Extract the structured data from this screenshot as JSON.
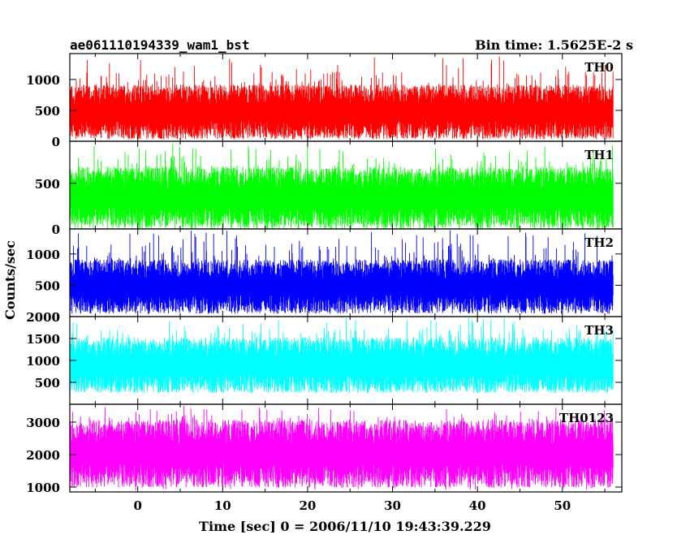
{
  "chart_data": {
    "type": "line",
    "title_left": "ae061110194339_wam1_bst",
    "title_right": "Bin time: 1.5625E-2 s",
    "xlabel": "Time [sec] 0 = 2006/11/10 19:43:39.229",
    "ylabel": "Counts/sec",
    "xlim": [
      -8,
      57
    ],
    "x_ticks": [
      0,
      10,
      20,
      30,
      40,
      50
    ],
    "x_range_data": [
      -8,
      56
    ],
    "grid": false,
    "panels": [
      {
        "name": "TH0",
        "color": "#ff0000",
        "ylim": [
          0,
          1420
        ],
        "yticks": [
          0,
          500,
          1000
        ],
        "base_low": 190,
        "base_high": 760,
        "peak_max": 1380,
        "trough_min": 40
      },
      {
        "name": "TH1",
        "color": "#00ff00",
        "ylim": [
          0,
          960
        ],
        "yticks": [
          0,
          500
        ],
        "base_low": 120,
        "base_high": 560,
        "peak_max": 930,
        "trough_min": 30
      },
      {
        "name": "TH2",
        "color": "#0000ff",
        "ylim": [
          0,
          1400
        ],
        "yticks": [
          0,
          500,
          1000
        ],
        "base_low": 200,
        "base_high": 760,
        "peak_max": 1380,
        "trough_min": 40
      },
      {
        "name": "TH3",
        "color": "#00ffff",
        "ylim": [
          0,
          2000
        ],
        "yticks": [
          500,
          1000,
          1500,
          2000
        ],
        "base_low": 480,
        "base_high": 1300,
        "peak_max": 1980,
        "trough_min": 260
      },
      {
        "name": "TH0123",
        "color": "#ff00ff",
        "ylim": [
          850,
          3550
        ],
        "yticks": [
          1000,
          2000,
          3000
        ],
        "base_low": 1350,
        "base_high": 2700,
        "peak_max": 3500,
        "trough_min": 900
      }
    ]
  }
}
